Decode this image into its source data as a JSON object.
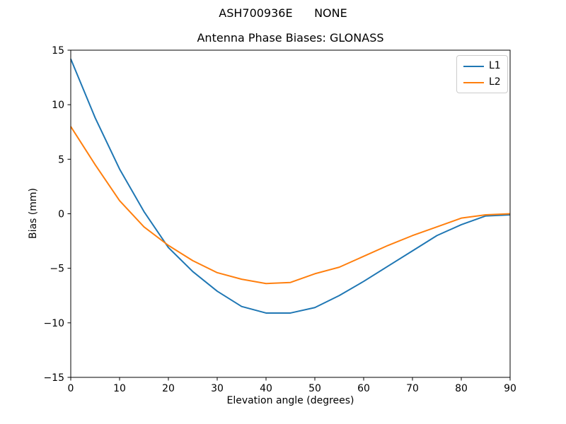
{
  "suptitle": "ASH700936E      NONE",
  "chart_data": {
    "type": "line",
    "title": "Antenna Phase Biases: GLONASS",
    "xlabel": "Elevation angle (degrees)",
    "ylabel": "Bias (mm)",
    "xlim": [
      0,
      90
    ],
    "ylim": [
      -15,
      15
    ],
    "xticks": [
      0,
      10,
      20,
      30,
      40,
      50,
      60,
      70,
      80,
      90
    ],
    "yticks": [
      -15,
      -10,
      -5,
      0,
      5,
      10,
      15
    ],
    "grid": false,
    "legend_position": "upper right",
    "x": [
      0,
      5,
      10,
      15,
      20,
      25,
      30,
      35,
      40,
      45,
      50,
      55,
      60,
      65,
      70,
      75,
      80,
      85,
      90
    ],
    "series": [
      {
        "name": "L1",
        "color": "#1f77b4",
        "values": [
          14.2,
          8.8,
          4.1,
          0.2,
          -3.1,
          -5.3,
          -7.1,
          -8.5,
          -9.1,
          -9.1,
          -8.6,
          -7.5,
          -6.2,
          -4.8,
          -3.4,
          -2.0,
          -1.0,
          -0.2,
          -0.1
        ]
      },
      {
        "name": "L2",
        "color": "#ff7f0e",
        "values": [
          8.0,
          4.5,
          1.2,
          -1.2,
          -2.9,
          -4.3,
          -5.4,
          -6.0,
          -6.4,
          -6.3,
          -5.5,
          -4.9,
          -3.9,
          -2.9,
          -2.0,
          -1.2,
          -0.4,
          -0.1,
          0.0
        ]
      }
    ]
  },
  "colors": {
    "axis": "#000000",
    "tick": "#000000",
    "legend_border": "#cccccc",
    "background": "#ffffff"
  }
}
